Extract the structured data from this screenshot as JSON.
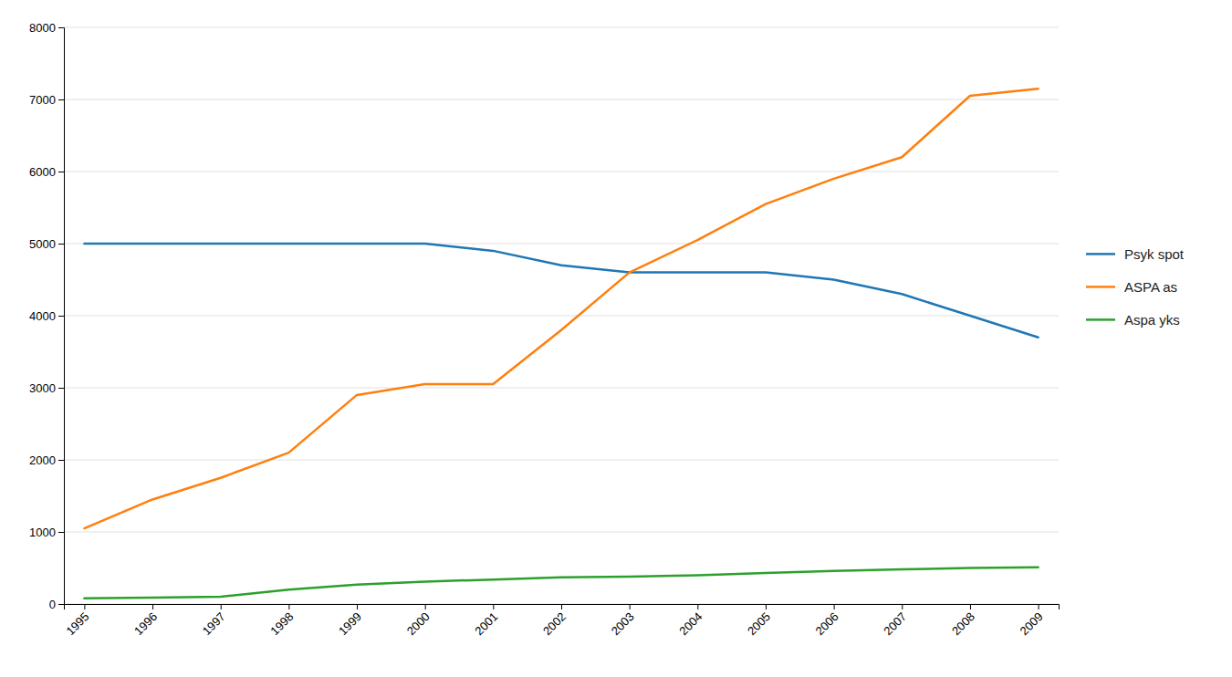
{
  "chart_data": {
    "type": "line",
    "x": [
      1995,
      1996,
      1997,
      1998,
      1999,
      2000,
      2001,
      2002,
      2003,
      2004,
      2005,
      2006,
      2007,
      2008,
      2009
    ],
    "xlim": [
      1994.7,
      2009.3
    ],
    "xticks": [
      1995,
      1996,
      1997,
      1998,
      1999,
      2000,
      2001,
      2002,
      2003,
      2004,
      2005,
      2006,
      2007,
      2008,
      2009
    ],
    "series": [
      {
        "name": "Psyk spot",
        "values": [
          5000,
          5000,
          5000,
          5000,
          5000,
          5000,
          4900,
          4700,
          4600,
          4600,
          4600,
          4500,
          4300,
          4000,
          3700
        ]
      },
      {
        "name": "ASPA as",
        "values": [
          1050,
          1450,
          1750,
          2100,
          2900,
          3050,
          3050,
          3800,
          4600,
          5050,
          5550,
          5900,
          6200,
          7050,
          7150
        ]
      },
      {
        "name": "Aspa yks",
        "values": [
          80,
          90,
          100,
          200,
          270,
          310,
          340,
          370,
          380,
          400,
          430,
          460,
          480,
          500,
          510
        ]
      }
    ],
    "ylim": [
      0,
      8000
    ],
    "yticks": [
      0,
      1000,
      2000,
      3000,
      4000,
      5000,
      6000,
      7000,
      8000
    ],
    "grid": true,
    "legend": "right"
  }
}
